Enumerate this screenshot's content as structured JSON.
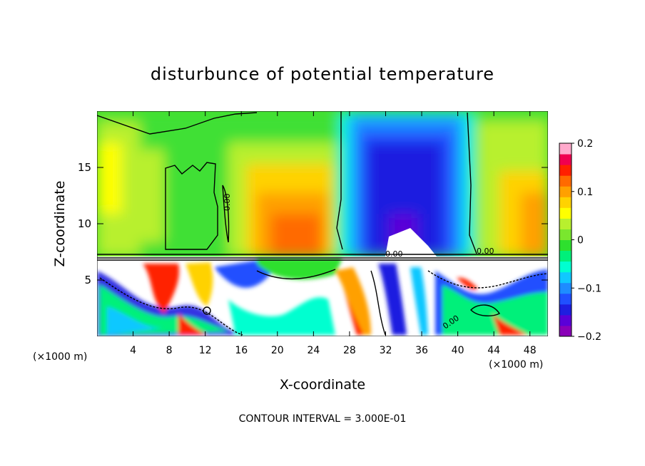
{
  "chart_data": {
    "type": "heatmap",
    "title": "disturbunce of potential temperature",
    "xlabel": "X-coordinate",
    "ylabel": "Z-coordinate",
    "x_unit_left": "(×1000 m)",
    "x_unit_right": "(×1000 m)",
    "xlim": [
      0,
      50
    ],
    "ylim": [
      0,
      20
    ],
    "x_ticks": [
      "4",
      "8",
      "12",
      "16",
      "20",
      "24",
      "28",
      "32",
      "36",
      "40",
      "44",
      "48"
    ],
    "x_tick_values": [
      4,
      8,
      12,
      16,
      20,
      24,
      28,
      32,
      36,
      40,
      44,
      48
    ],
    "y_ticks": [
      "5",
      "10",
      "15"
    ],
    "y_tick_values": [
      5,
      10,
      15
    ],
    "colorbar": {
      "range": [
        -0.2,
        0.2
      ],
      "ticks": [
        "0.2",
        "0.1",
        "0",
        "−0.1",
        "−0.2"
      ],
      "tick_values": [
        0.2,
        0.1,
        0,
        -0.1,
        -0.2
      ],
      "colors": [
        "#8a00b8",
        "#5a00d8",
        "#1e1ee0",
        "#2050ff",
        "#1e8cff",
        "#10c8ff",
        "#00ffd0",
        "#00f07a",
        "#2ee02e",
        "#7ae62e",
        "#b8f02e",
        "#ffff00",
        "#ffd200",
        "#ffa000",
        "#ff6a00",
        "#ff2000",
        "#f00050",
        "#ffaacc"
      ]
    },
    "contour_labels": [
      "0.00",
      "0.00",
      "0.00",
      "0.00"
    ],
    "contour_interval_text": "CONTOUR INTERVAL = 3.000E-01",
    "grid": false
  }
}
